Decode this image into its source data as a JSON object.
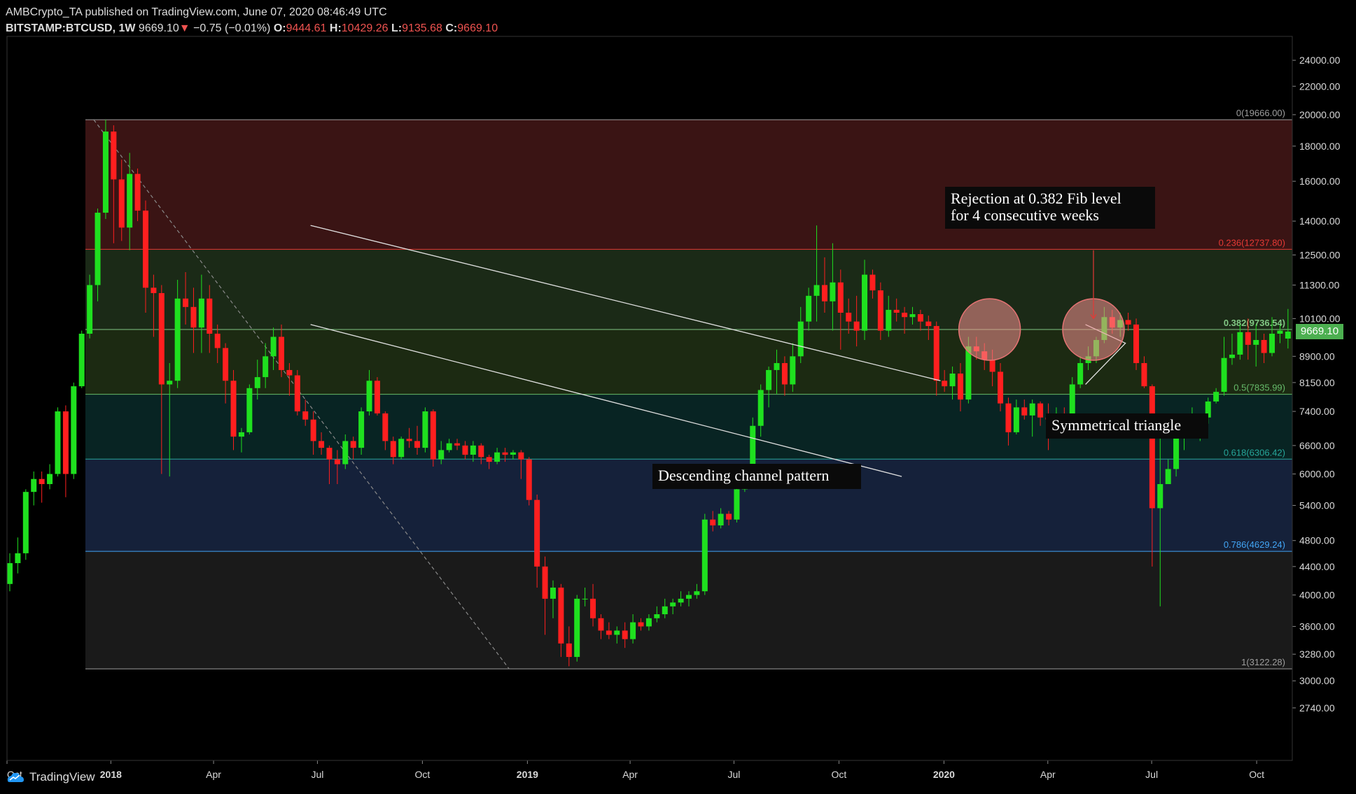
{
  "header": {
    "publisher": "AMBCrypto_TA published on TradingView.com, June 07, 2020 08:46:49 UTC",
    "symbol": "BITSTAMP:BTCUSD, 1W",
    "last": "9669.10",
    "change": "−0.75 (−0.01%)",
    "open_label": "O:",
    "open": "9444.61",
    "high_label": "H:",
    "high": "10429.26",
    "low_label": "L:",
    "low": "9135.68",
    "close_label": "C:",
    "close": "9669.10"
  },
  "footer": {
    "brand": "TradingView"
  },
  "current_price_tag": "9669.10",
  "colors": {
    "up": "#1fe01f",
    "down": "#ff1f1f",
    "background": "#000000",
    "axis_text": "#d9d9d9"
  },
  "chart_data": {
    "type": "candlestick",
    "symbol": "BITSTAMP:BTCUSD",
    "interval": "1W",
    "y_scale": "log",
    "ylim": [
      2500,
      26000
    ],
    "y_ticks": [
      "24000.00",
      "22000.00",
      "20000.00",
      "18000.00",
      "16000.00",
      "14000.00",
      "12500.00",
      "11300.00",
      "10100.00",
      "8900.00",
      "8150.00",
      "7400.00",
      "6600.00",
      "6000.00",
      "5400.00",
      "4800.00",
      "4400.00",
      "4000.00",
      "3600.00",
      "3280.00",
      "3000.00",
      "2740.00"
    ],
    "x_ticks": [
      "Oct",
      "2018",
      "Apr",
      "Jul",
      "Oct",
      "2019",
      "Apr",
      "Jul",
      "Oct",
      "2020",
      "Apr",
      "Jul",
      "Oct"
    ],
    "x_range_weeks": [
      "2017-10-02",
      "2020-10-31"
    ],
    "fib_levels": [
      {
        "label": "0(19666.00)",
        "price": 19666.0,
        "color": "#9e9e9e",
        "zone": "#3a1414"
      },
      {
        "label": "0.236(12737.80)",
        "price": 12737.8,
        "color": "#e53935",
        "zone": "#1b2a17"
      },
      {
        "label": "0.382(9736.54)",
        "price": 9736.54,
        "color": "#81c784",
        "zone": "#1c2a12"
      },
      {
        "label": "0.5(7835.99)",
        "price": 7835.99,
        "color": "#66bb6a",
        "zone": "#082423"
      },
      {
        "label": "0.618(6306.42)",
        "price": 6306.42,
        "color": "#26a69a",
        "zone": "#15213a"
      },
      {
        "label": "0.786(4629.24)",
        "price": 4629.24,
        "color": "#42a5f5",
        "zone": "#1a1a1a"
      },
      {
        "label": "1(3122.28)",
        "price": 3122.28,
        "color": "#9e9e9e",
        "zone": null
      }
    ],
    "annotations": [
      "Rejection at 0.382 Fib level\nfor 4 consecutive weeks",
      "Descending channel pattern",
      "Symmetrical triangle"
    ],
    "candles": [
      [
        4150,
        4600,
        4050,
        4450
      ],
      [
        4450,
        4850,
        4300,
        4600
      ],
      [
        4600,
        5700,
        4500,
        5650
      ],
      [
        5650,
        6050,
        5400,
        5900
      ],
      [
        5900,
        6050,
        5450,
        5800
      ],
      [
        5800,
        6200,
        5700,
        6000
      ],
      [
        6000,
        7500,
        5950,
        7400
      ],
      [
        7400,
        7550,
        5550,
        6000
      ],
      [
        6000,
        8150,
        5900,
        8050
      ],
      [
        8050,
        9700,
        8000,
        9600
      ],
      [
        9600,
        11700,
        9450,
        11300
      ],
      [
        11300,
        14600,
        10700,
        14400
      ],
      [
        14400,
        19666,
        14100,
        18900
      ],
      [
        18900,
        19300,
        13000,
        16100
      ],
      [
        16100,
        17200,
        13100,
        13700
      ],
      [
        13700,
        17600,
        12700,
        16400
      ],
      [
        16400,
        16700,
        14000,
        14500
      ],
      [
        14500,
        15000,
        10300,
        11200
      ],
      [
        11200,
        11700,
        9500,
        11000
      ],
      [
        11000,
        11300,
        6000,
        8100
      ],
      [
        8100,
        8700,
        5950,
        8200
      ],
      [
        8200,
        11500,
        8000,
        10800
      ],
      [
        10800,
        11800,
        9900,
        10500
      ],
      [
        10500,
        11200,
        9000,
        9800
      ],
      [
        9800,
        11700,
        9000,
        10800
      ],
      [
        10800,
        11300,
        9000,
        9600
      ],
      [
        9600,
        9900,
        8700,
        9150
      ],
      [
        9150,
        9300,
        7600,
        8200
      ],
      [
        8200,
        8500,
        6500,
        6800
      ],
      [
        6800,
        7000,
        6450,
        6900
      ],
      [
        6900,
        8100,
        6850,
        8000
      ],
      [
        8000,
        8800,
        7700,
        8300
      ],
      [
        8300,
        9300,
        8000,
        8900
      ],
      [
        8900,
        9800,
        8500,
        9500
      ],
      [
        9500,
        9900,
        8300,
        8500
      ],
      [
        8500,
        8700,
        7800,
        8350
      ],
      [
        8350,
        8500,
        7300,
        7400
      ],
      [
        7400,
        7700,
        7050,
        7200
      ],
      [
        7200,
        7400,
        6400,
        6700
      ],
      [
        6700,
        6900,
        6400,
        6550
      ],
      [
        6550,
        6600,
        5800,
        6300
      ],
      [
        6300,
        6500,
        5800,
        6200
      ],
      [
        6200,
        6850,
        6100,
        6700
      ],
      [
        6700,
        6800,
        6300,
        6550
      ],
      [
        6550,
        7500,
        6400,
        7400
      ],
      [
        7400,
        8500,
        7300,
        8200
      ],
      [
        8200,
        8300,
        7300,
        7350
      ],
      [
        7350,
        7400,
        6500,
        6700
      ],
      [
        6700,
        6800,
        6200,
        6350
      ],
      [
        6350,
        6800,
        6300,
        6750
      ],
      [
        6750,
        7000,
        6550,
        6700
      ],
      [
        6700,
        7050,
        6400,
        6550
      ],
      [
        6550,
        7500,
        6450,
        7400
      ],
      [
        7400,
        7450,
        6150,
        6300
      ],
      [
        6300,
        6700,
        6200,
        6500
      ],
      [
        6500,
        6750,
        6450,
        6650
      ],
      [
        6650,
        6750,
        6500,
        6600
      ],
      [
        6600,
        6700,
        6300,
        6400
      ],
      [
        6400,
        6700,
        6250,
        6600
      ],
      [
        6600,
        6650,
        6200,
        6350
      ],
      [
        6350,
        6400,
        6100,
        6250
      ],
      [
        6250,
        6550,
        6200,
        6450
      ],
      [
        6450,
        6550,
        6250,
        6400
      ],
      [
        6400,
        6500,
        6300,
        6450
      ],
      [
        6450,
        6500,
        5900,
        6300
      ],
      [
        6300,
        6350,
        5400,
        5500
      ],
      [
        5500,
        5600,
        4100,
        4400
      ],
      [
        4400,
        4550,
        3500,
        3950
      ],
      [
        3950,
        4200,
        3700,
        4100
      ],
      [
        4100,
        4150,
        3250,
        3400
      ],
      [
        3400,
        3600,
        3150,
        3250
      ],
      [
        3250,
        4000,
        3200,
        3950
      ],
      [
        3950,
        4100,
        3850,
        3950
      ],
      [
        3950,
        4150,
        3600,
        3700
      ],
      [
        3700,
        3750,
        3450,
        3550
      ],
      [
        3550,
        3650,
        3450,
        3500
      ],
      [
        3500,
        3600,
        3400,
        3550
      ],
      [
        3550,
        3650,
        3350,
        3450
      ],
      [
        3450,
        3750,
        3400,
        3650
      ],
      [
        3650,
        3700,
        3550,
        3600
      ],
      [
        3600,
        3750,
        3550,
        3700
      ],
      [
        3700,
        3850,
        3650,
        3750
      ],
      [
        3750,
        3950,
        3700,
        3850
      ],
      [
        3850,
        3950,
        3750,
        3900
      ],
      [
        3900,
        4050,
        3850,
        3950
      ],
      [
        3950,
        4050,
        3850,
        4000
      ],
      [
        4000,
        4150,
        3950,
        4050
      ],
      [
        4050,
        5250,
        4000,
        5150
      ],
      [
        5150,
        5300,
        4950,
        5050
      ],
      [
        5050,
        5350,
        5000,
        5250
      ],
      [
        5250,
        5300,
        5050,
        5150
      ],
      [
        5150,
        5800,
        5100,
        5700
      ],
      [
        5700,
        6050,
        5650,
        5950
      ],
      [
        5950,
        7250,
        5900,
        7050
      ],
      [
        7050,
        8100,
        6800,
        7950
      ],
      [
        7950,
        8600,
        7500,
        8500
      ],
      [
        8500,
        9100,
        7850,
        8700
      ],
      [
        8700,
        8900,
        7800,
        8100
      ],
      [
        8100,
        9300,
        7900,
        8900
      ],
      [
        8900,
        10500,
        8700,
        10000
      ],
      [
        10000,
        11200,
        9700,
        10900
      ],
      [
        10900,
        13800,
        10000,
        11300
      ],
      [
        11300,
        12400,
        10300,
        10700
      ],
      [
        10700,
        13000,
        9700,
        11400
      ],
      [
        11400,
        11900,
        9100,
        10300
      ],
      [
        10300,
        10800,
        9600,
        10000
      ],
      [
        10000,
        10900,
        9200,
        9700
      ],
      [
        9700,
        12300,
        9400,
        11700
      ],
      [
        11700,
        11900,
        10800,
        11100
      ],
      [
        11100,
        11400,
        9400,
        9700
      ],
      [
        9700,
        10900,
        9500,
        10400
      ],
      [
        10400,
        10800,
        10000,
        10300
      ],
      [
        10300,
        10500,
        9600,
        10150
      ],
      [
        10150,
        10500,
        9900,
        10250
      ],
      [
        10250,
        10400,
        9700,
        10000
      ],
      [
        10000,
        10200,
        9400,
        9850
      ],
      [
        9850,
        10000,
        7800,
        8200
      ],
      [
        8200,
        8500,
        7900,
        8050
      ],
      [
        8050,
        8600,
        7700,
        8400
      ],
      [
        8400,
        8700,
        7400,
        7700
      ],
      [
        7700,
        9500,
        7600,
        9200
      ],
      [
        9200,
        9500,
        8800,
        9050
      ],
      [
        9050,
        9300,
        8500,
        8800
      ],
      [
        8800,
        9100,
        8050,
        8450
      ],
      [
        8450,
        8700,
        7400,
        7600
      ],
      [
        7600,
        7750,
        6600,
        6900
      ],
      [
        6900,
        7700,
        6850,
        7500
      ],
      [
        7500,
        7700,
        7200,
        7300
      ],
      [
        7300,
        7700,
        6800,
        7600
      ],
      [
        7600,
        7650,
        7050,
        7250
      ],
      [
        7250,
        7600,
        6500,
        7200
      ],
      [
        7200,
        7500,
        7100,
        7350
      ],
      [
        7350,
        7500,
        6950,
        7200
      ],
      [
        7200,
        8300,
        7150,
        8100
      ],
      [
        8100,
        8900,
        8000,
        8700
      ],
      [
        8700,
        9200,
        8500,
        8900
      ],
      [
        8900,
        9500,
        8700,
        9400
      ],
      [
        9400,
        10500,
        9300,
        10150
      ],
      [
        10150,
        10400,
        9600,
        9800
      ],
      [
        9800,
        10300,
        9500,
        10050
      ],
      [
        10050,
        10300,
        9700,
        9900
      ],
      [
        9900,
        10100,
        8500,
        8700
      ],
      [
        8700,
        8900,
        8000,
        8050
      ],
      [
        8050,
        8100,
        4400,
        5350
      ],
      [
        5350,
        6800,
        3850,
        5800
      ],
      [
        5800,
        6300,
        5800,
        6100
      ],
      [
        6100,
        7000,
        5950,
        6950
      ],
      [
        6950,
        7200,
        6500,
        7000
      ],
      [
        7000,
        7500,
        6800,
        7150
      ],
      [
        7150,
        7300,
        6700,
        7250
      ],
      [
        7250,
        7750,
        7100,
        7650
      ],
      [
        7650,
        8000,
        7600,
        7900
      ],
      [
        7900,
        9500,
        7800,
        8850
      ],
      [
        8850,
        9600,
        8650,
        8950
      ],
      [
        8950,
        9900,
        8800,
        9650
      ],
      [
        9650,
        10100,
        8800,
        9250
      ],
      [
        9250,
        9900,
        8600,
        9400
      ],
      [
        9400,
        9600,
        8700,
        9000
      ],
      [
        9000,
        10150,
        8900,
        9600
      ],
      [
        9600,
        9900,
        9300,
        9700
      ],
      [
        9444.61,
        10429.26,
        9135.68,
        9669.1
      ]
    ],
    "first_candle_date": "2017-10-02",
    "patterns": {
      "descending_channel": {
        "upper": [
          [
            "2018-06-25",
            13800
          ],
          [
            "2019-12-29",
            8200
          ]
        ],
        "lower": [
          [
            "2018-06-25",
            9900
          ],
          [
            "2019-11-25",
            5950
          ]
        ]
      },
      "triangle_up": [
        [
          "2020-05-04",
          9900
        ],
        [
          "2020-06-08",
          9300
        ]
      ],
      "triangle_down": [
        [
          "2020-05-04",
          8100
        ],
        [
          "2020-06-08",
          9300
        ]
      ],
      "diag_dashed": [
        [
          "2017-12-17",
          19666
        ],
        [
          "2018-12-16",
          3122.28
        ]
      ],
      "circles": [
        [
          "2020-02-10",
          9736.54
        ],
        [
          "2020-05-11",
          9736.54
        ]
      ],
      "arrow": [
        [
          "2020-05-11",
          12700
        ],
        [
          "2020-05-11",
          10100
        ]
      ]
    }
  }
}
